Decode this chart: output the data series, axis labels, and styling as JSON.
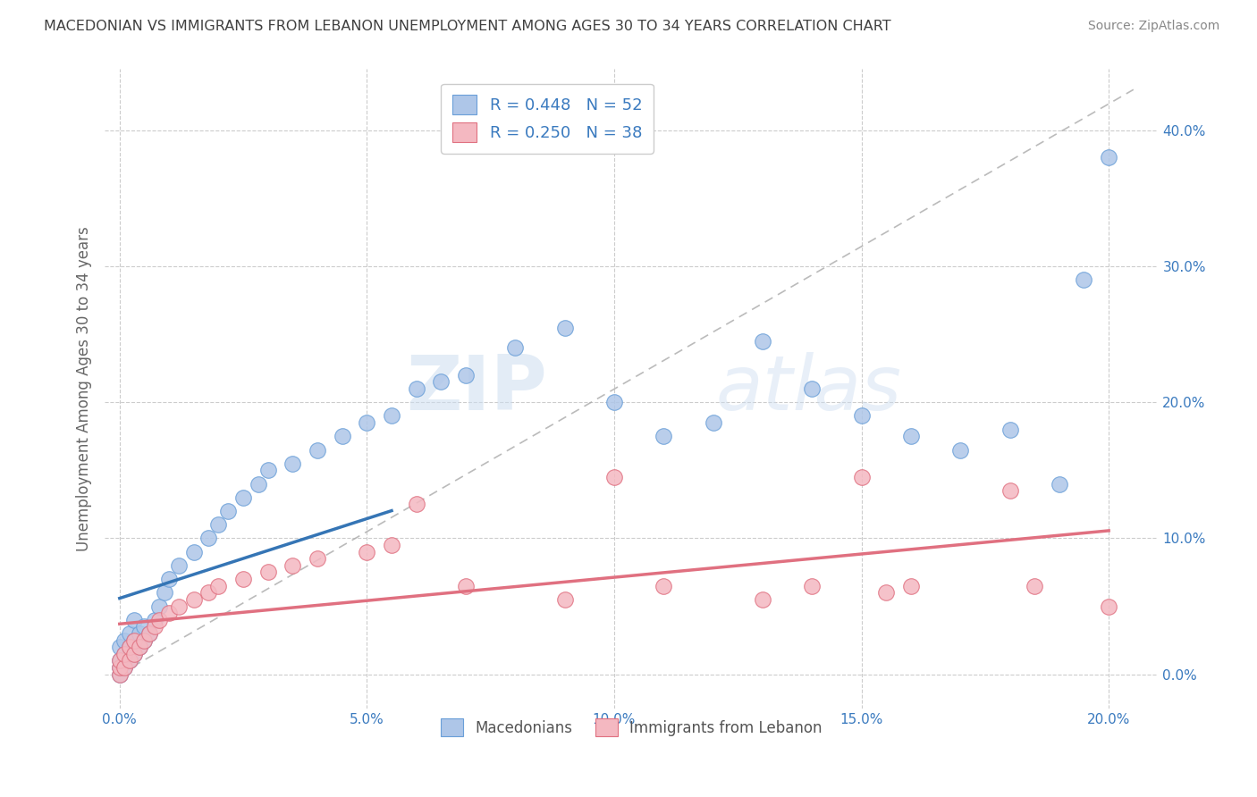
{
  "title": "MACEDONIAN VS IMMIGRANTS FROM LEBANON UNEMPLOYMENT AMONG AGES 30 TO 34 YEARS CORRELATION CHART",
  "source": "Source: ZipAtlas.com",
  "xlabel_ticks": [
    "0.0%",
    "",
    "5.0%",
    "",
    "10.0%",
    "",
    "15.0%",
    "",
    "20.0%"
  ],
  "xlabel_vals": [
    0.0,
    0.025,
    0.05,
    0.075,
    0.1,
    0.125,
    0.15,
    0.175,
    0.2
  ],
  "ylabel_ticks": [
    "0.0%",
    "10.0%",
    "20.0%",
    "30.0%",
    "40.0%"
  ],
  "ylabel_vals": [
    0.0,
    0.1,
    0.2,
    0.3,
    0.4
  ],
  "xlim": [
    -0.003,
    0.21
  ],
  "ylim": [
    -0.025,
    0.445
  ],
  "legend1_label": "R = 0.448   N = 52",
  "legend2_label": "R = 0.250   N = 38",
  "legend1_color": "#aec6e8",
  "legend2_color": "#f4b8c1",
  "trendline1_color": "#3575b5",
  "trendline2_color": "#e07080",
  "scatter1_color": "#aec6e8",
  "scatter2_color": "#f4b8c1",
  "scatter1_edge": "#6a9fd8",
  "scatter2_edge": "#e07080",
  "macedonians_x": [
    0.0,
    0.0,
    0.0,
    0.0,
    0.001,
    0.001,
    0.001,
    0.002,
    0.002,
    0.002,
    0.003,
    0.003,
    0.003,
    0.004,
    0.004,
    0.005,
    0.005,
    0.006,
    0.007,
    0.008,
    0.009,
    0.01,
    0.012,
    0.015,
    0.018,
    0.02,
    0.022,
    0.025,
    0.028,
    0.03,
    0.035,
    0.04,
    0.045,
    0.05,
    0.055,
    0.06,
    0.065,
    0.07,
    0.08,
    0.09,
    0.1,
    0.11,
    0.12,
    0.13,
    0.14,
    0.15,
    0.16,
    0.17,
    0.18,
    0.19,
    0.195,
    0.2
  ],
  "macedonians_y": [
    0.0,
    0.005,
    0.01,
    0.02,
    0.005,
    0.015,
    0.025,
    0.01,
    0.02,
    0.03,
    0.015,
    0.025,
    0.04,
    0.02,
    0.03,
    0.025,
    0.035,
    0.03,
    0.04,
    0.05,
    0.06,
    0.07,
    0.08,
    0.09,
    0.1,
    0.11,
    0.12,
    0.13,
    0.14,
    0.15,
    0.155,
    0.165,
    0.175,
    0.185,
    0.19,
    0.21,
    0.215,
    0.22,
    0.24,
    0.255,
    0.2,
    0.175,
    0.185,
    0.245,
    0.21,
    0.19,
    0.175,
    0.165,
    0.18,
    0.14,
    0.29,
    0.38
  ],
  "lebanon_x": [
    0.0,
    0.0,
    0.0,
    0.001,
    0.001,
    0.002,
    0.002,
    0.003,
    0.003,
    0.004,
    0.005,
    0.006,
    0.007,
    0.008,
    0.01,
    0.012,
    0.015,
    0.018,
    0.02,
    0.025,
    0.03,
    0.035,
    0.04,
    0.05,
    0.055,
    0.06,
    0.07,
    0.09,
    0.1,
    0.11,
    0.13,
    0.14,
    0.15,
    0.155,
    0.16,
    0.18,
    0.185,
    0.2
  ],
  "lebanon_y": [
    0.0,
    0.005,
    0.01,
    0.005,
    0.015,
    0.01,
    0.02,
    0.015,
    0.025,
    0.02,
    0.025,
    0.03,
    0.035,
    0.04,
    0.045,
    0.05,
    0.055,
    0.06,
    0.065,
    0.07,
    0.075,
    0.08,
    0.085,
    0.09,
    0.095,
    0.125,
    0.065,
    0.055,
    0.145,
    0.065,
    0.055,
    0.065,
    0.145,
    0.06,
    0.065,
    0.135,
    0.065,
    0.05
  ],
  "watermark_zip": "ZIP",
  "watermark_atlas": "atlas",
  "background_color": "#ffffff",
  "grid_color": "#cccccc",
  "title_color": "#404040",
  "legend_text_color": "#3a7abf",
  "ylabel": "Unemployment Among Ages 30 to 34 years",
  "legend_bottom1": "Macedonians",
  "legend_bottom2": "Immigrants from Lebanon"
}
